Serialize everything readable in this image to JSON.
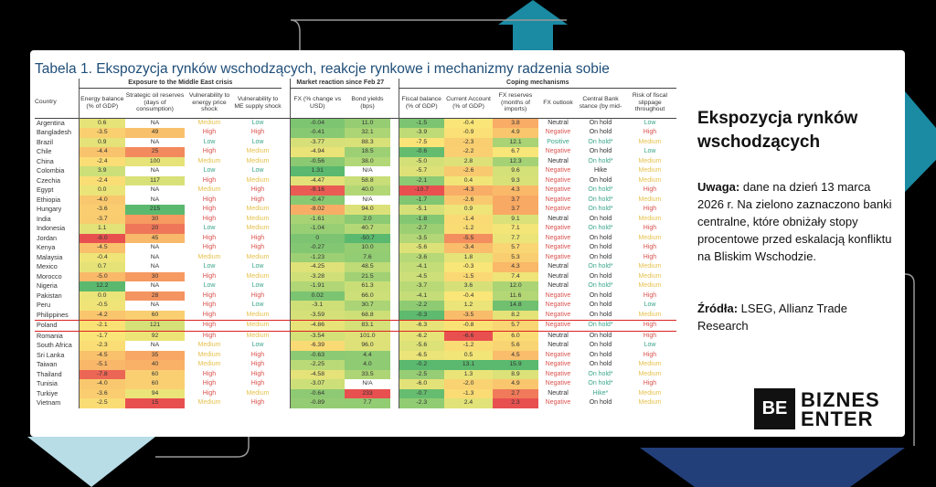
{
  "table": {
    "title": "Tabela 1. Ekspozycja rynków wschodzących, reakcje rynkowe i mechanizmy radzenia sobie",
    "groups": {
      "exposure": "Exposure to the Middle East crisis",
      "market": "Market reaction since Feb 27",
      "coping": "Coping mechanisms"
    },
    "headers": [
      "Country",
      "Energy balance (% of GDP)",
      "Strategic oil reserves (days of consumption)",
      "Vulnerability to energy price shock",
      "Vulnerability to ME supply shock",
      "FX (% change vs USD)",
      "Bond yields (bps)",
      "Fiscal balance (% of GDP)",
      "Current Account (% of GDP)",
      "FX reserves (months of imports)",
      "FX outlook",
      "Central Bank stance (by mid-",
      "Risk of fiscal slippage throughout"
    ],
    "highlighted_country": "Poland",
    "rows": [
      [
        "Argentina",
        "0.6",
        "NA",
        "Medium",
        "Low",
        "-0.04",
        "11.0",
        "-1.5",
        "-0.4",
        "3.8",
        "Neutral",
        "On hold",
        "Low"
      ],
      [
        "Bangladesh",
        "-3.5",
        "49",
        "High",
        "High",
        "-0.41",
        "32.1",
        "-3.9",
        "-0.9",
        "4.9",
        "Negative",
        "On hold",
        "High"
      ],
      [
        "Brazil",
        "0.9",
        "NA",
        "Low",
        "Low",
        "-3.77",
        "88.3",
        "-7.5",
        "-2.3",
        "12.1",
        "Positive",
        "On hold*",
        "Medium"
      ],
      [
        "Chile",
        "-4.4",
        "25",
        "High",
        "Medium",
        "-4.94",
        "18.5",
        "-0.6",
        "-2.2",
        "6.7",
        "Negative",
        "On hold",
        "Low"
      ],
      [
        "China",
        "-2.4",
        "100",
        "Medium",
        "Medium",
        "-0.56",
        "38.0",
        "-5.0",
        "2.8",
        "12.3",
        "Neutral",
        "On hold*",
        "Medium"
      ],
      [
        "Colombia",
        "3.9",
        "NA",
        "Low",
        "Low",
        "1.31",
        "N/A",
        "-5.7",
        "-2.6",
        "9.6",
        "Negative",
        "Hike",
        "Medium"
      ],
      [
        "Czechia",
        "-2.4",
        "117",
        "High",
        "Medium",
        "-4.47",
        "58.8",
        "-2.1",
        "0.4",
        "9.3",
        "Negative",
        "On hold",
        "Medium"
      ],
      [
        "Egypt",
        "0.0",
        "NA",
        "Medium",
        "High",
        "-9.16",
        "40.0",
        "-10.7",
        "-4.3",
        "4.3",
        "Negative",
        "On hold*",
        "High"
      ],
      [
        "Ethiopia",
        "-4.0",
        "NA",
        "High",
        "High",
        "-0.47",
        "N/A",
        "-1.7",
        "-2.6",
        "3.7",
        "Negative",
        "On hold*",
        "Medium"
      ],
      [
        "Hungary",
        "-3.6",
        "215",
        "High",
        "Medium",
        "-8.02",
        "94.0",
        "-5.1",
        "0.9",
        "3.7",
        "Negative",
        "On hold*",
        "High"
      ],
      [
        "India",
        "-3.7",
        "30",
        "High",
        "Medium",
        "-1.61",
        "2.0",
        "-1.8",
        "-1.4",
        "9.1",
        "Neutral",
        "On hold",
        "Medium"
      ],
      [
        "Indonesia",
        "1.1",
        "20",
        "Low",
        "Medium",
        "-1.04",
        "40.7",
        "-2.7",
        "-1.2",
        "7.1",
        "Negative",
        "On hold*",
        "High"
      ],
      [
        "Jordan",
        "-8.0",
        "45",
        "High",
        "High",
        "0",
        "-50.7",
        "-3.5",
        "-5.5",
        "7.7",
        "Negative",
        "On hold",
        "Medium"
      ],
      [
        "Kenya",
        "-4.5",
        "NA",
        "High",
        "High",
        "-0.27",
        "10.0",
        "-5.6",
        "-3.4",
        "5.7",
        "Negative",
        "On hold",
        "High"
      ],
      [
        "Malaysia",
        "-0.4",
        "NA",
        "Medium",
        "Medium",
        "-1.23",
        "7.6",
        "-3.6",
        "1.8",
        "5.3",
        "Negative",
        "On hold",
        "High"
      ],
      [
        "Mexico",
        "0.7",
        "NA",
        "Low",
        "Low",
        "-4.25",
        "48.5",
        "-4.1",
        "-0.3",
        "4.3",
        "Neutral",
        "On hold*",
        "Medium"
      ],
      [
        "Morocco",
        "-5.0",
        "30",
        "High",
        "Medium",
        "-3.28",
        "21.5",
        "-4.5",
        "-1.5",
        "7.4",
        "Neutral",
        "On hold",
        "Medium"
      ],
      [
        "Nigeria",
        "12.2",
        "NA",
        "Low",
        "Low",
        "-1.91",
        "61.3",
        "-3.7",
        "3.6",
        "12.0",
        "Neutral",
        "On hold*",
        "Medium"
      ],
      [
        "Pakistan",
        "0.0",
        "28",
        "High",
        "High",
        "0.02",
        "66.0",
        "-4.1",
        "-0.4",
        "11.6",
        "Negative",
        "On hold",
        "High"
      ],
      [
        "Peru",
        "-0.5",
        "NA",
        "High",
        "Low",
        "-3.1",
        "30.7",
        "-2.2",
        "1.2",
        "14.8",
        "Negative",
        "On hold",
        "Low"
      ],
      [
        "Philippines",
        "-4.2",
        "60",
        "High",
        "Medium",
        "-3.59",
        "68.8",
        "-0.3",
        "-3.5",
        "8.2",
        "Negative",
        "On hold",
        "Medium"
      ],
      [
        "Poland",
        "-2.1",
        "121",
        "High",
        "Medium",
        "-4.86",
        "83.1",
        "-6.3",
        "-0.8",
        "5.7",
        "Negative",
        "On hold*",
        "High"
      ],
      [
        "Romania",
        "-1.7",
        "92",
        "High",
        "Medium",
        "-3.54",
        "101.0",
        "-6.2",
        "-6.6",
        "6.0",
        "Neutral",
        "On hold",
        "High"
      ],
      [
        "South Africa",
        "-2.3",
        "NA",
        "Medium",
        "Low",
        "-6.39",
        "96.0",
        "-5.6",
        "-1.2",
        "5.6",
        "Neutral",
        "On hold",
        "Low"
      ],
      [
        "Sri Lanka",
        "-4.5",
        "35",
        "Medium",
        "High",
        "-0.63",
        "4.4",
        "-6.5",
        "0.5",
        "4.5",
        "Negative",
        "On hold",
        "High"
      ],
      [
        "Taiwan",
        "-5.1",
        "40",
        "Medium",
        "High",
        "-2.25",
        "4.0",
        "-0.2",
        "13.1",
        "15.9",
        "Negative",
        "On hold",
        "Medium"
      ],
      [
        "Thailand",
        "-7.8",
        "60",
        "High",
        "High",
        "-4.58",
        "33.5",
        "-2.5",
        "1.3",
        "8.9",
        "Negative",
        "On hold*",
        "Medium"
      ],
      [
        "Tunisia",
        "-4.0",
        "60",
        "High",
        "High",
        "-3.07",
        "N/A",
        "-6.0",
        "-2.0",
        "4.9",
        "Negative",
        "On hold*",
        "High"
      ],
      [
        "Turkiye",
        "-3.6",
        "94",
        "High",
        "Medium",
        "-0.64",
        "233",
        "-0.7",
        "-1.3",
        "2.7",
        "Neutral",
        "Hike*",
        "Medium"
      ],
      [
        "Vietnam",
        "-2.5",
        "15",
        "Medium",
        "High",
        "-0.89",
        "7.7",
        "-2.3",
        "2.4",
        "2.3",
        "Negative",
        "On hold",
        "Medium"
      ]
    ]
  },
  "side": {
    "heading": "Ekspozycja rynków wschodzących",
    "note_label": "Uwaga:",
    "note": " dane na dzień 13 marca 2026 r. Na zielono zaznaczono banki centralne, które obniżały stopy procentowe przed eskalacją konfliktu na Bliskim Wschodzie.",
    "source_label": "Źródła:",
    "source": " LSEG, Allianz Trade Research"
  },
  "logo": {
    "mark": "BE",
    "line1": "BIZNES",
    "line2": "ENTER"
  },
  "colors": {
    "title": "#1f4e79",
    "teal": "#1b8aa3",
    "light_blue": "#b8dde6",
    "navy": "#233f7a",
    "high": "#d9534f",
    "medium": "#e6c24e",
    "low": "#3aa58a"
  }
}
